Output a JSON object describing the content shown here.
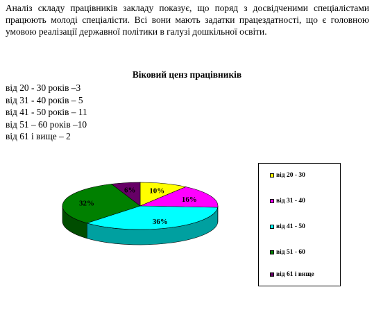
{
  "document": {
    "intro": "Аналіз складу працівників закладу показує, що поряд з досвідченими спеціалістами працюють молоді спеціалісти. Всі вони мають задатки працездатності, що є головною умовою реалізації державної політики в галузі дошкільної освіти.",
    "heading": "Віковий ценз працівників",
    "stats": [
      "від 20 - 30 років –3",
      "від 31 - 40 років – 5",
      "від 41 - 50 років – 11",
      "від 51 – 60 років –10",
      "від 61 і вище – 2"
    ]
  },
  "chart_data": {
    "type": "pie",
    "style": "3d",
    "legend_position": "right",
    "slices": [
      {
        "name": "від 20 - 30",
        "value": 10,
        "label": "10%",
        "color": "#ffff00",
        "side_color": "#a6a600"
      },
      {
        "name": "від 31 - 40",
        "value": 16,
        "label": "16%",
        "color": "#ff00ff",
        "side_color": "#a300a3"
      },
      {
        "name": "від 41 - 50",
        "value": 36,
        "label": "36%",
        "color": "#00ffff",
        "side_color": "#00a0a0"
      },
      {
        "name": "від 51 - 60",
        "value": 32,
        "label": "32%",
        "color": "#008000",
        "side_color": "#004d00"
      },
      {
        "name": "від 61 і вище",
        "value": 6,
        "label": "6%",
        "color": "#660066",
        "side_color": "#3a003a"
      }
    ]
  }
}
